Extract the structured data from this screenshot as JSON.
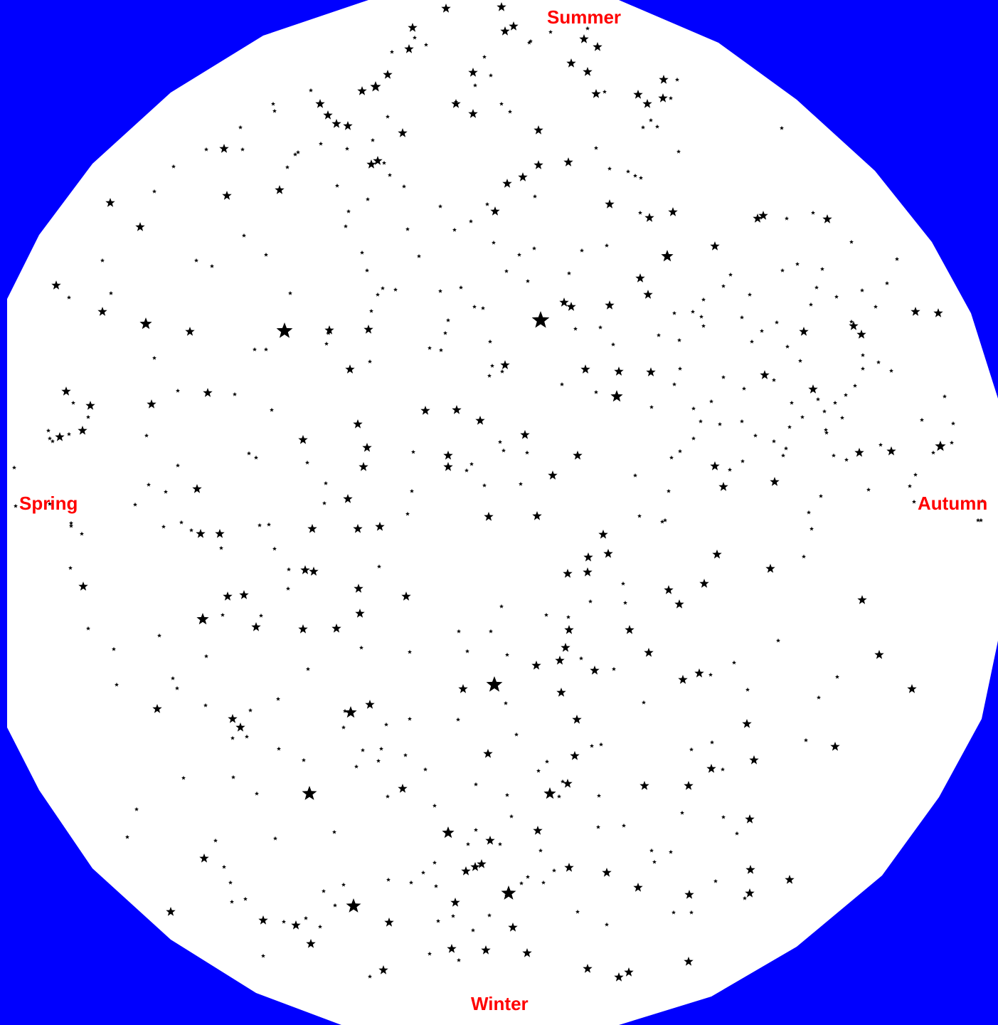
{
  "colors": {
    "background": "#0000ff",
    "sky": "#ffffff",
    "stars": "#000000",
    "labels": "#ff0000"
  },
  "labels": {
    "summer": "Summer",
    "spring": "Spring",
    "autumn": "Autumn",
    "winter": "Winter"
  },
  "icons": {
    "star": "star-icon"
  }
}
